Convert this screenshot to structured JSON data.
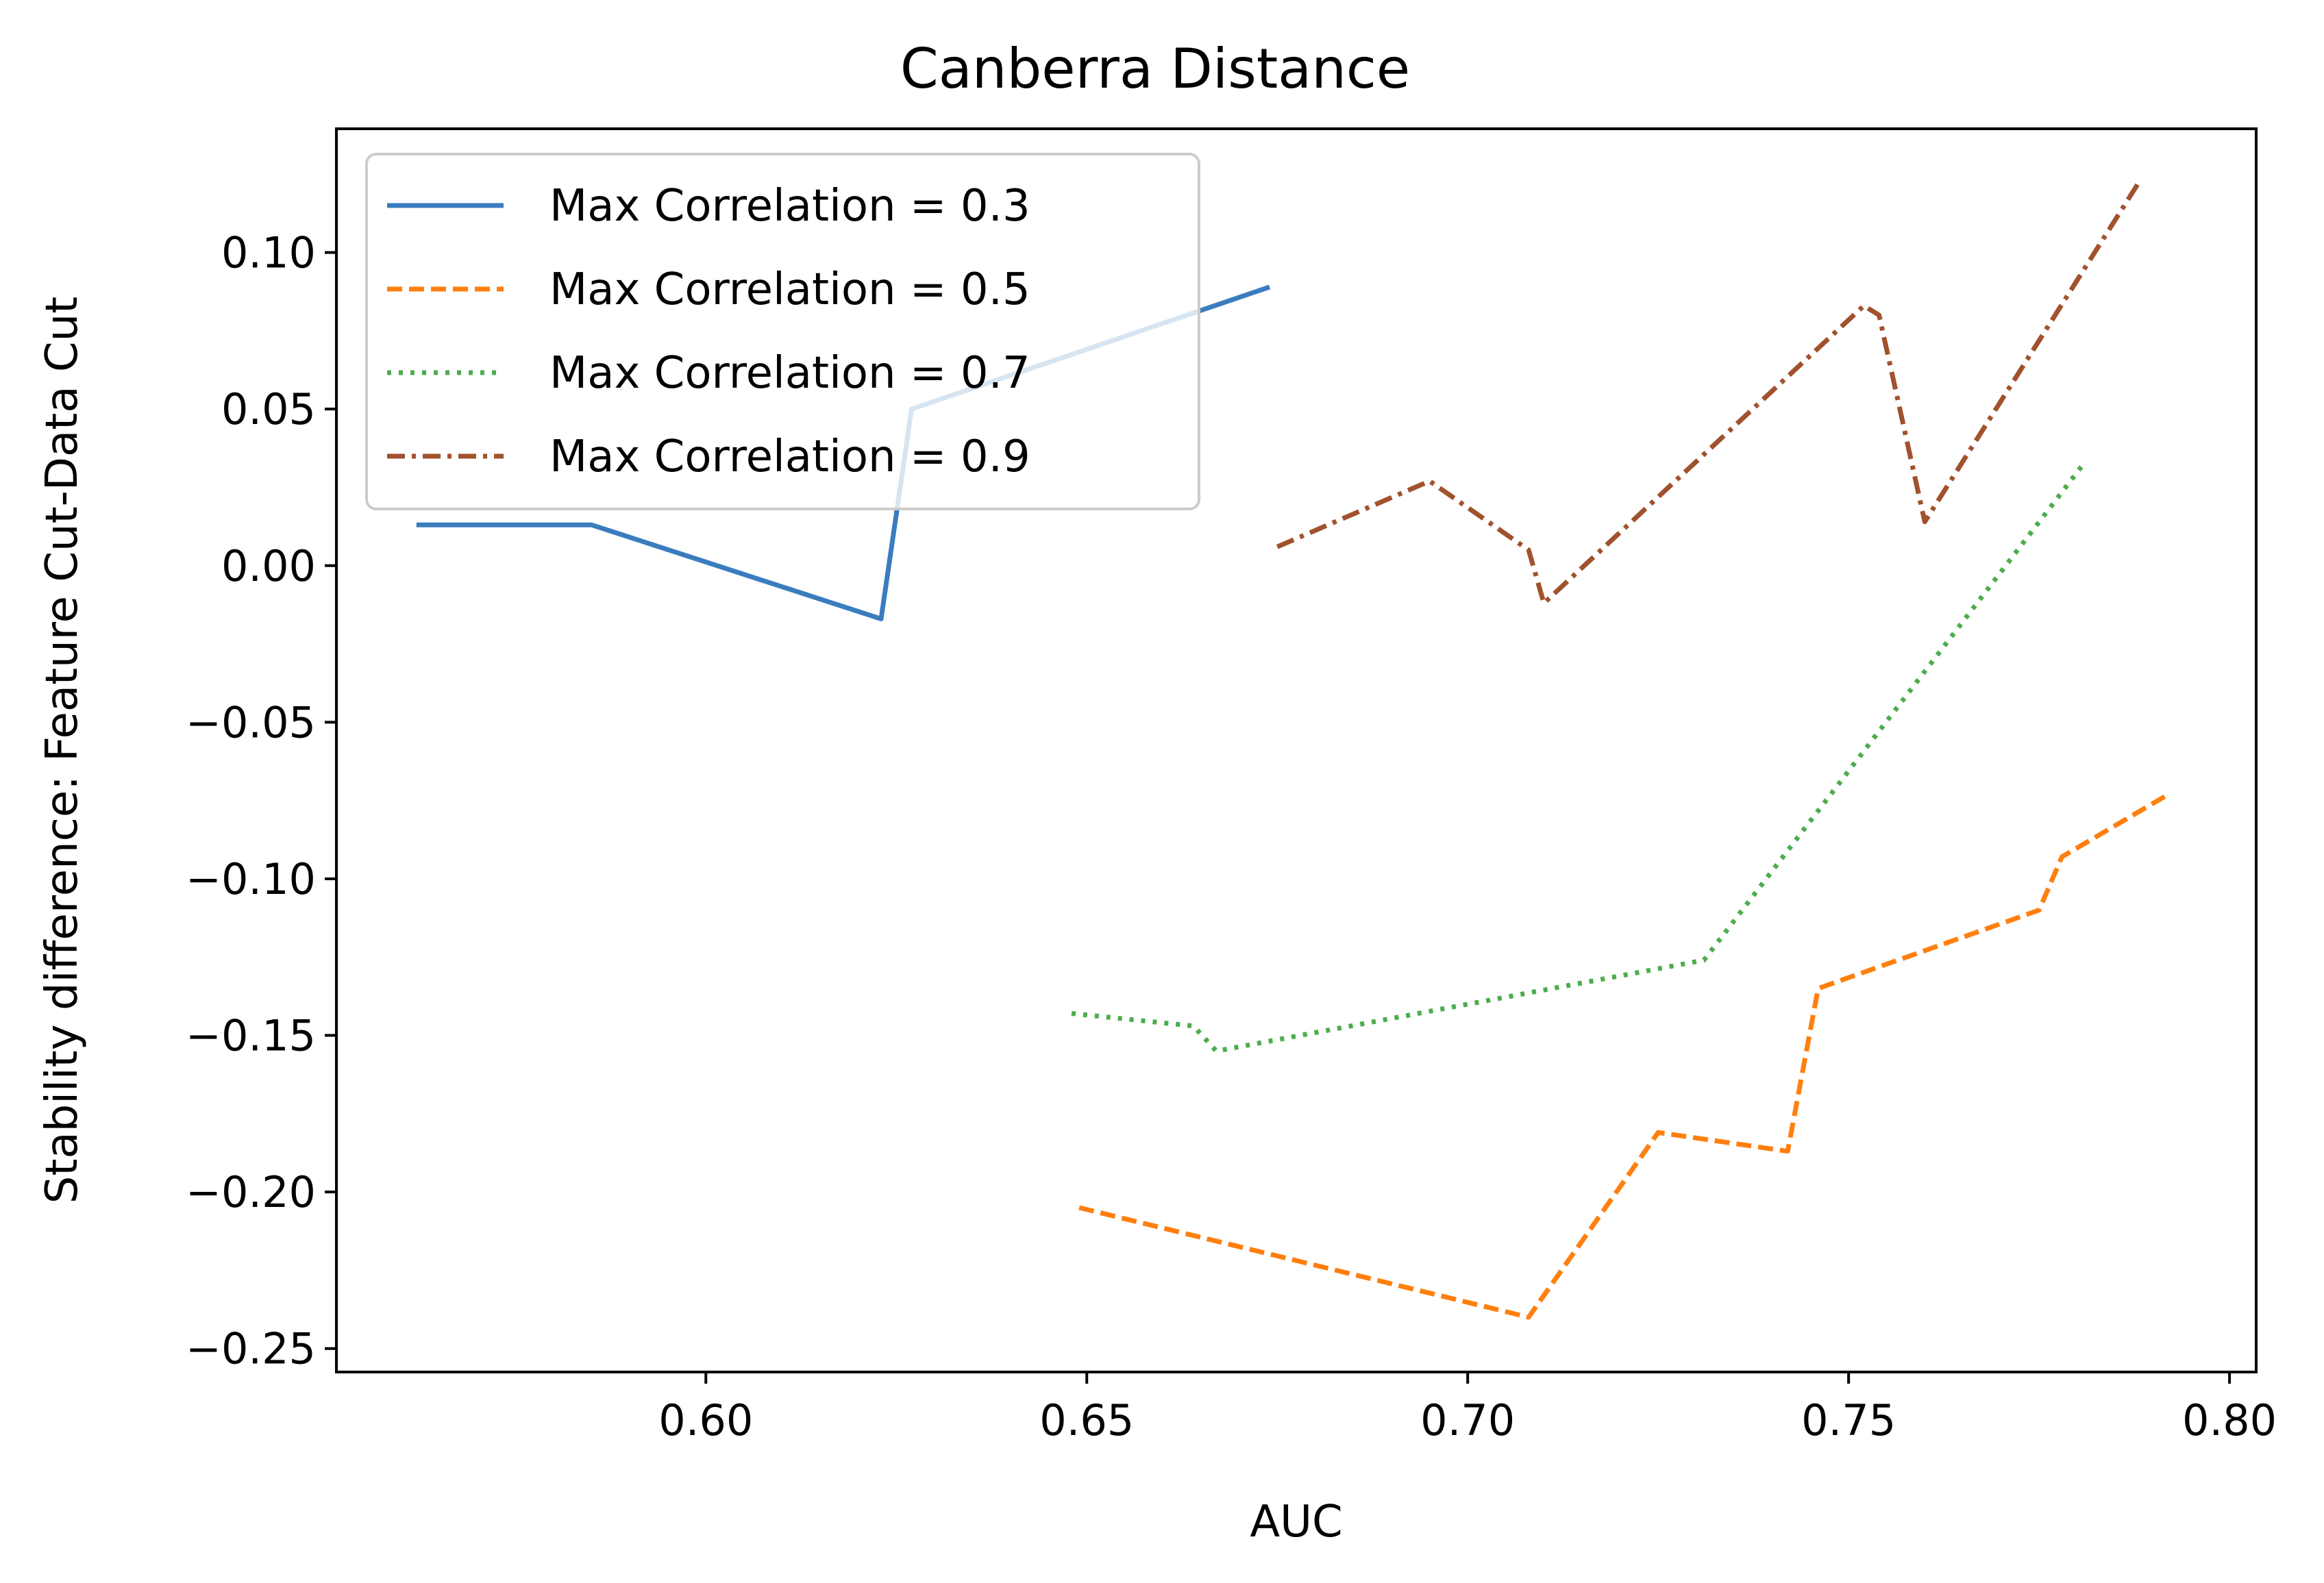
{
  "chart_data": {
    "type": "line",
    "title": "Canberra Distance",
    "xlabel": "AUC",
    "ylabel": "Stability difference: Feature Cut-Data Cut",
    "xlim": [
      0.5515,
      0.8035
    ],
    "ylim": [
      -0.2575,
      0.1395
    ],
    "xticks": [
      0.6,
      0.65,
      0.7,
      0.75,
      0.8
    ],
    "xtick_labels": [
      "0.60",
      "0.65",
      "0.70",
      "0.75",
      "0.80"
    ],
    "yticks": [
      0.1,
      0.05,
      0.0,
      -0.05,
      -0.1,
      -0.15,
      -0.2,
      -0.25
    ],
    "ytick_labels": [
      "0.10",
      "0.05",
      "0.00",
      "−0.05",
      "−0.10",
      "−0.15",
      "−0.20",
      "−0.25"
    ],
    "grid": false,
    "legend_position": "upper-left",
    "series": [
      {
        "name": "Max Correlation = 0.3",
        "color": "#3a7dbf",
        "style": "solid",
        "points": [
          [
            0.562,
            0.013
          ],
          [
            0.585,
            0.013
          ],
          [
            0.623,
            -0.017
          ],
          [
            0.627,
            0.05
          ],
          [
            0.674,
            0.089
          ]
        ]
      },
      {
        "name": "Max Correlation = 0.5",
        "color": "#ff7f0e",
        "style": "dashed",
        "points": [
          [
            0.649,
            -0.205
          ],
          [
            0.708,
            -0.24
          ],
          [
            0.725,
            -0.181
          ],
          [
            0.742,
            -0.187
          ],
          [
            0.746,
            -0.135
          ],
          [
            0.775,
            -0.11
          ],
          [
            0.778,
            -0.093
          ],
          [
            0.792,
            -0.073
          ]
        ]
      },
      {
        "name": "Max Correlation = 0.7",
        "color": "#4dac4d",
        "style": "dotted",
        "points": [
          [
            0.648,
            -0.143
          ],
          [
            0.664,
            -0.147
          ],
          [
            0.667,
            -0.155
          ],
          [
            0.731,
            -0.126
          ],
          [
            0.781,
            0.033
          ]
        ]
      },
      {
        "name": "Max Correlation = 0.9",
        "color": "#a0522d",
        "style": "dashdot",
        "points": [
          [
            0.675,
            0.006
          ],
          [
            0.695,
            0.027
          ],
          [
            0.708,
            0.005
          ],
          [
            0.71,
            -0.012
          ],
          [
            0.752,
            0.083
          ],
          [
            0.754,
            0.08
          ],
          [
            0.76,
            0.014
          ],
          [
            0.788,
            0.122
          ]
        ]
      }
    ]
  }
}
